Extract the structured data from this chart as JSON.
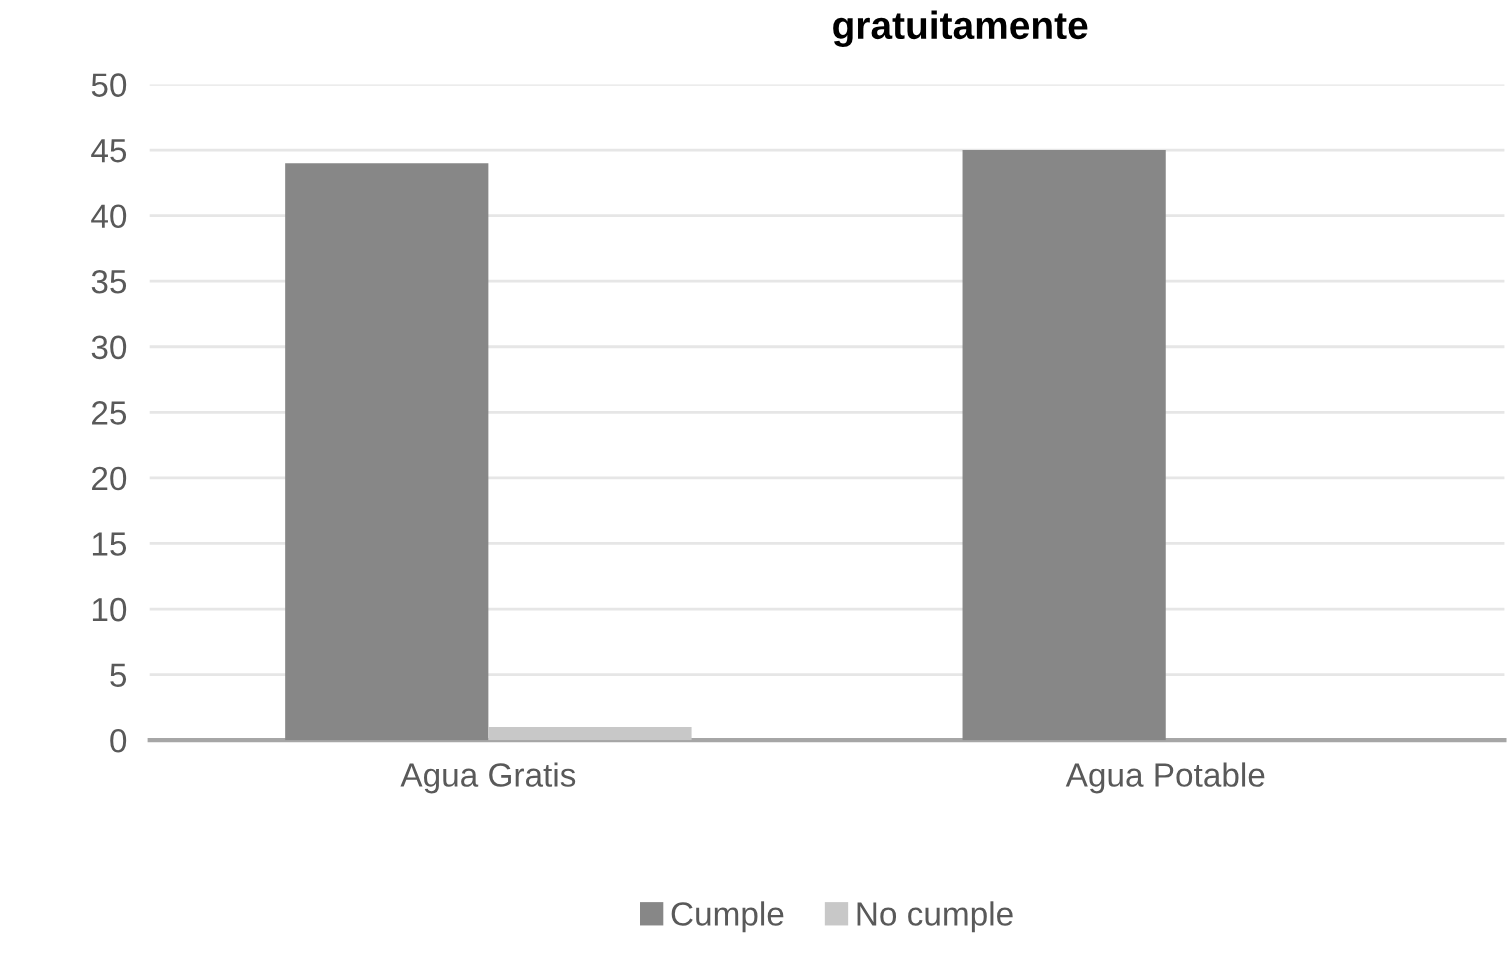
{
  "chart_data": {
    "type": "bar",
    "title": "gratuitamente",
    "categories": [
      "Agua Gratis",
      "Agua Potable"
    ],
    "series": [
      {
        "name": "Cumple",
        "color": "#878787",
        "values": [
          44,
          45
        ]
      },
      {
        "name": "No cumple",
        "color": "#c8c8c8",
        "values": [
          1,
          0
        ]
      }
    ],
    "ylim": [
      0,
      50
    ],
    "yticks": [
      0,
      5,
      10,
      15,
      20,
      25,
      30,
      35,
      40,
      45,
      50
    ],
    "grid": "y",
    "legend": "bottom"
  }
}
